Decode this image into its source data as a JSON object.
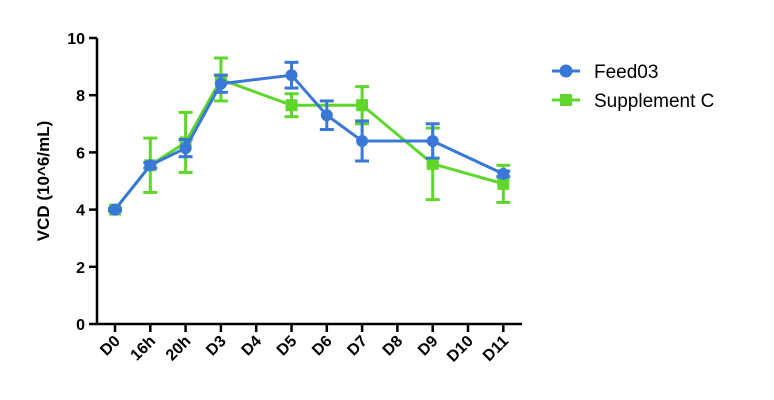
{
  "chart_data": {
    "type": "line",
    "title": "",
    "xlabel": "",
    "ylabel": "VCD (10^6/mL)",
    "categories": [
      "D0",
      "16h",
      "20h",
      "D3",
      "D4",
      "D5",
      "D6",
      "D7",
      "D8",
      "D9",
      "D10",
      "D11"
    ],
    "ylim": [
      0,
      10
    ],
    "yticks": [
      0,
      2,
      4,
      6,
      8,
      10
    ],
    "grid": false,
    "legend": "top-right",
    "series": [
      {
        "name": "Feed03",
        "color": "#3a78d8",
        "marker": "circle",
        "x": [
          "D0",
          "16h",
          "20h",
          "D3",
          "D5",
          "D6",
          "D7",
          "D9",
          "D11"
        ],
        "values": [
          4.0,
          5.55,
          6.15,
          8.4,
          8.7,
          7.3,
          6.4,
          6.4,
          5.25
        ],
        "error": [
          0.05,
          0.1,
          0.3,
          0.3,
          0.45,
          0.5,
          0.7,
          0.6,
          0.1
        ]
      },
      {
        "name": "Supplement C",
        "color": "#5fd62a",
        "marker": "square",
        "x": [
          "D0",
          "16h",
          "20h",
          "D3",
          "D5",
          "D7",
          "D9",
          "D11"
        ],
        "values": [
          4.0,
          5.55,
          6.35,
          8.55,
          7.65,
          7.65,
          5.6,
          4.9
        ],
        "error": [
          0.05,
          0.95,
          1.05,
          0.75,
          0.4,
          0.65,
          1.25,
          0.65
        ]
      }
    ]
  }
}
